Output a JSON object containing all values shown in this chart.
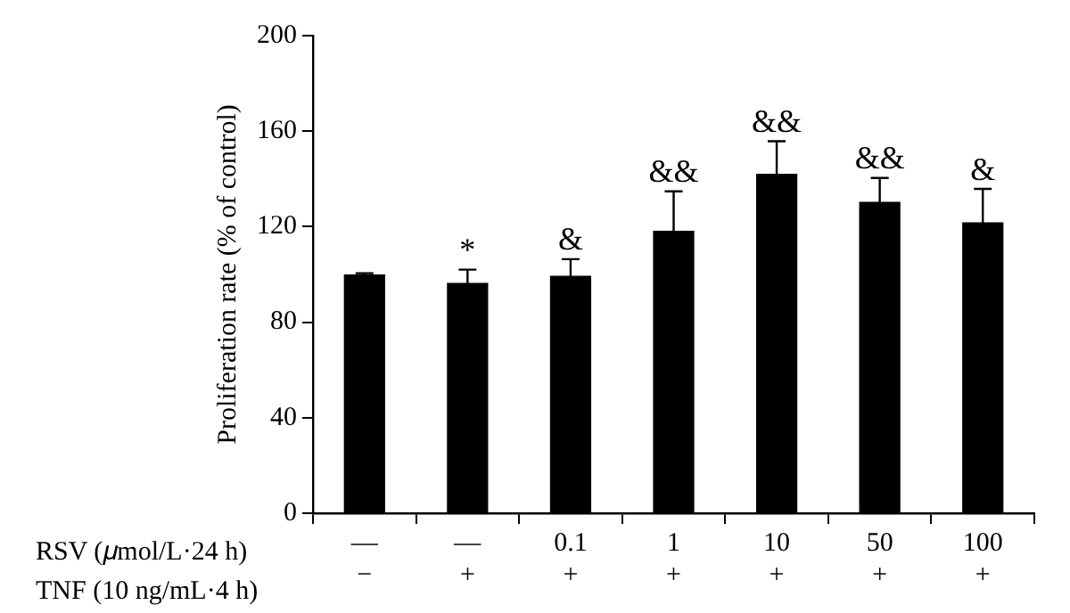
{
  "chart_data": {
    "type": "bar",
    "ylabel": "Proliferation rate (% of control)",
    "categories": [
      "—\n−",
      "—\n+",
      "0.1\n+",
      "1\n+",
      "10\n+",
      "50\n+",
      "100\n+"
    ],
    "values": [
      100,
      96.5,
      99.4,
      118.3,
      142.2,
      130.4,
      121.8
    ],
    "errors": [
      0.5,
      5.5,
      7,
      16.5,
      13.6,
      10,
      14
    ],
    "color": "#000000",
    "ylim": [
      0,
      200
    ],
    "yticks": [
      0,
      40,
      80,
      120,
      160,
      200
    ],
    "grid": false,
    "legend": false,
    "annotations": [
      "RSV (𝜇mol/L·24 h)",
      "TNF (10 ng/mL·4 h)",
      {
        "text": "*",
        "x": "—\n+",
        "y": 102
      },
      {
        "text": "&",
        "x": "0.1\n+",
        "y": 106.4
      },
      {
        "text": "&&",
        "x": "1\n+",
        "y": 134.8
      },
      {
        "text": "&&",
        "x": "10\n+",
        "y": 155.8
      },
      {
        "text": "&&",
        "x": "50\n+",
        "y": 140.4
      },
      {
        "text": "&",
        "x": "100\n+",
        "y": 135.8
      }
    ]
  }
}
